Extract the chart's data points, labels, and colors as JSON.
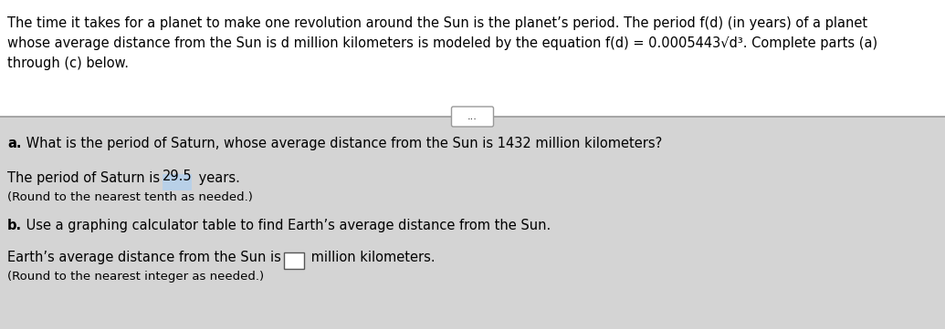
{
  "background_color": "#d4d4d4",
  "header_bg": "#ffffff",
  "text_color": "#000000",
  "highlight_color": "#b8d0e8",
  "line1": "The time it takes for a planet to make one revolution around the Sun is the planet’s period. The period f(d) (in years) of a planet",
  "line2": "whose average distance from the Sun is d million kilometers is modeled by the equation f(d) = 0.0005443√d³. Complete parts (a)",
  "line3": "through (c) below.",
  "dots_label": "•••",
  "part_a_label": "a.",
  "part_a_text": " What is the period of Saturn, whose average distance from the Sun is 1432 million kilometers?",
  "ans_a_pre": "The period of Saturn is ",
  "ans_a_val": "29.5",
  "ans_a_post": " years.",
  "round_a": "(Round to the nearest tenth as needed.)",
  "part_b_label": "b.",
  "part_b_text": " Use a graphing calculator table to find Earth’s average distance from the Sun.",
  "ans_b_pre": "Earth’s average distance from the Sun is ",
  "ans_b_post": " million kilometers.",
  "round_b": "(Round to the nearest integer as needed.)",
  "fig_width": 10.35,
  "fig_height": 3.61,
  "dpi": 100,
  "fs": 10.5,
  "fs_small": 9.5
}
